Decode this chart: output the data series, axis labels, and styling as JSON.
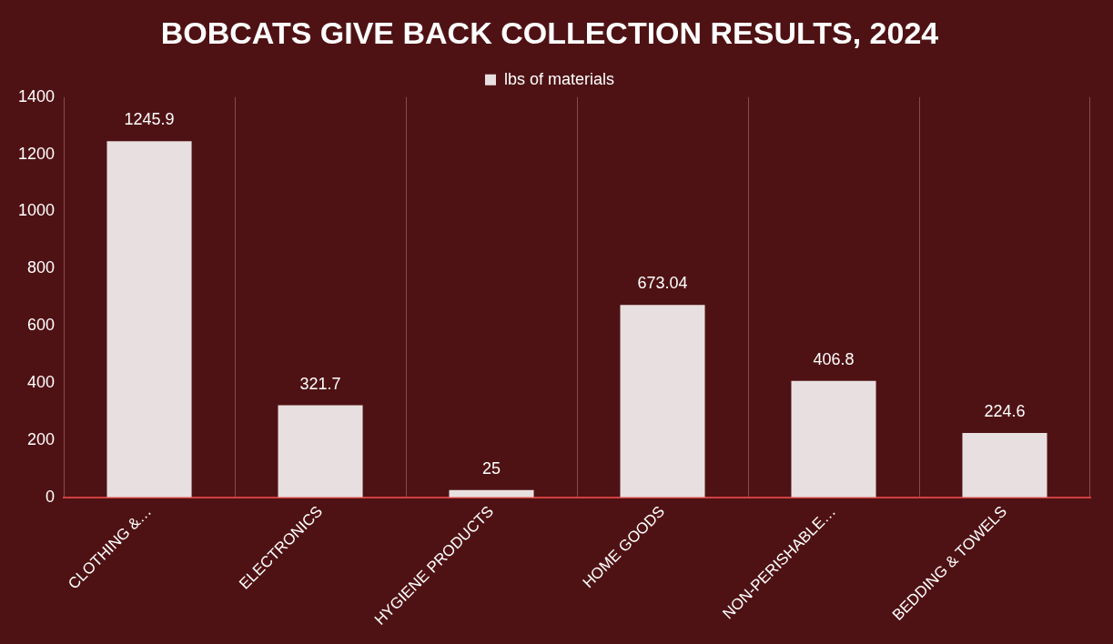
{
  "chart_data": {
    "type": "bar",
    "title": "BOBCATS GIVE BACK COLLECTION RESULTS, 2024",
    "categories": [
      "CLOTHING &…",
      "ELECTRONICS",
      "HYGIENE PRODUCTS",
      "HOME GOODS",
      "NON-PERISHABLE…",
      "BEDDING & TOWELS"
    ],
    "series": [
      {
        "name": "lbs of materials",
        "color": "#e8e0e0",
        "values": [
          1245.9,
          321.7,
          25,
          673.04,
          406.8,
          224.6
        ]
      }
    ],
    "ylim": [
      0,
      1400
    ],
    "yticks": [
      0,
      200,
      400,
      600,
      800,
      1000,
      1200,
      1400
    ],
    "grid": "x",
    "legend": "top",
    "data_labels": true
  }
}
